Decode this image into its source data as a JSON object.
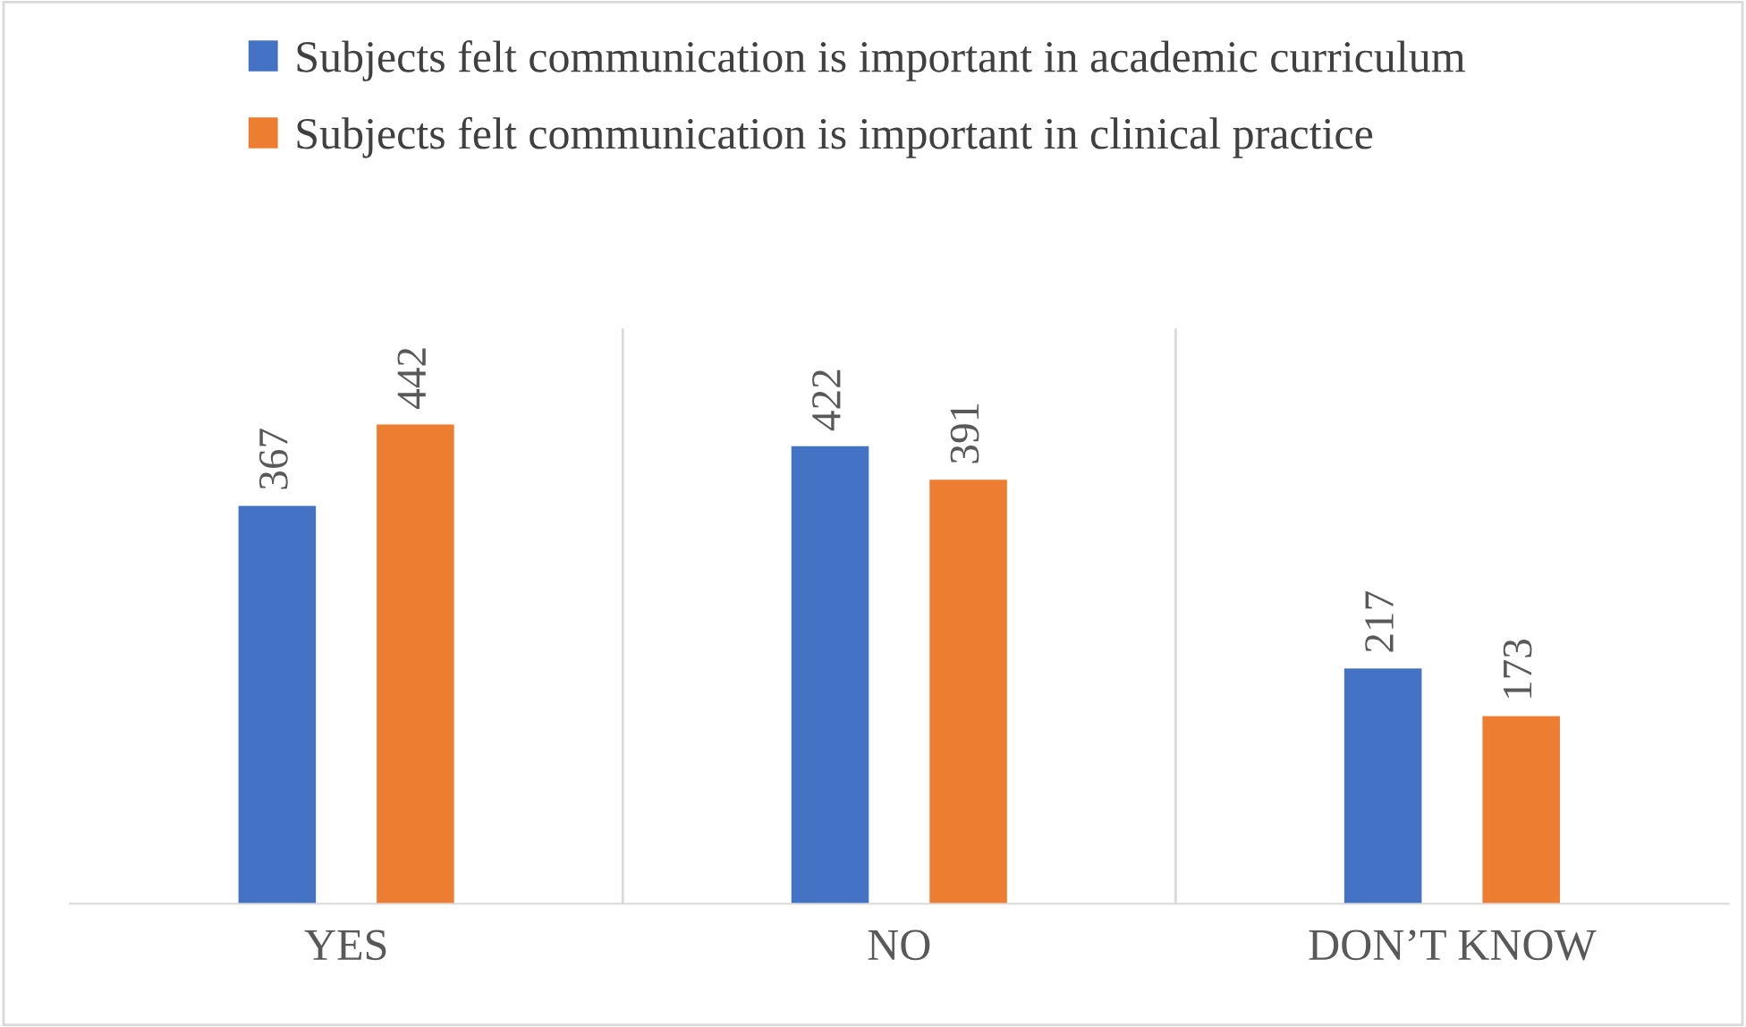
{
  "chart_data": {
    "type": "bar",
    "categories": [
      "YES",
      "NO",
      "DON’T KNOW"
    ],
    "series": [
      {
        "name": "Subjects felt communication is important in academic curriculum",
        "color": "#4472c4",
        "values": [
          367,
          422,
          217
        ]
      },
      {
        "name": "Subjects felt communication is important in clinical practice",
        "color": "#ed7d31",
        "values": [
          442,
          391,
          173
        ]
      }
    ],
    "data_labels": true,
    "grid": "x",
    "legend": "top",
    "tick_labels": "x"
  }
}
